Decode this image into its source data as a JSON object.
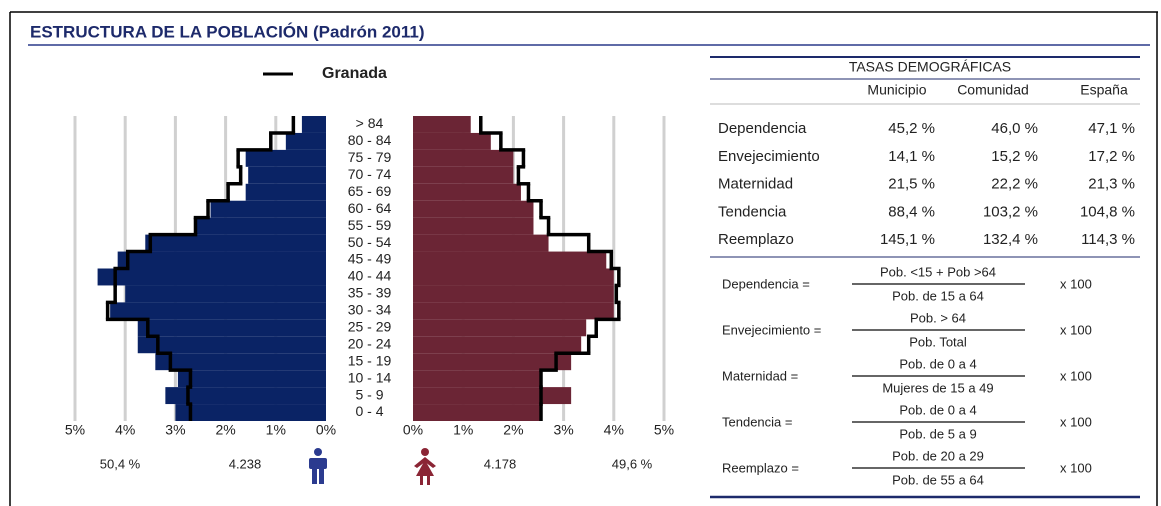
{
  "chart_data": {
    "type": "pyramid",
    "title": "ESTRUCTURA DE LA POBLACIÓN (Padrón 2011)",
    "categories": [
      "0 - 4",
      "5 - 9",
      "10 - 14",
      "15 - 19",
      "20 - 24",
      "25 - 29",
      "30 - 34",
      "35 - 39",
      "40 - 44",
      "45 - 49",
      "50 - 54",
      "55 - 59",
      "60 - 64",
      "65 - 69",
      "70 - 74",
      "75 - 79",
      "80 - 84",
      "> 84"
    ],
    "series": [
      {
        "side": "left",
        "color": "#0a2365",
        "values": [
          3.0,
          3.2,
          2.95,
          3.4,
          3.75,
          3.75,
          4.3,
          4.0,
          4.55,
          4.15,
          3.6,
          2.6,
          2.3,
          1.6,
          1.55,
          1.6,
          0.8,
          0.48
        ]
      },
      {
        "side": "right",
        "color": "#6b2535",
        "values": [
          2.55,
          3.15,
          2.55,
          3.15,
          3.35,
          3.45,
          4.0,
          4.0,
          4.0,
          3.85,
          2.7,
          2.4,
          2.4,
          2.15,
          2.0,
          2.0,
          1.55,
          1.15
        ]
      },
      {
        "name": "Granada",
        "side": "left",
        "color": "#000000",
        "values": [
          2.7,
          2.75,
          2.7,
          3.1,
          3.35,
          3.55,
          4.35,
          4.2,
          4.2,
          3.95,
          3.5,
          2.6,
          2.35,
          1.95,
          1.7,
          1.75,
          1.1,
          0.65
        ]
      },
      {
        "side": "right",
        "color": "#000000",
        "values": [
          2.55,
          2.55,
          2.55,
          2.85,
          3.5,
          3.65,
          4.1,
          4.05,
          4.1,
          3.95,
          3.5,
          2.7,
          2.55,
          2.3,
          2.1,
          2.2,
          1.75,
          1.35
        ]
      }
    ],
    "xlim": [
      0,
      5
    ],
    "xticks": [
      {
        "value": 0,
        "label": "0%"
      },
      {
        "value": 1,
        "label": "1%"
      },
      {
        "value": 2,
        "label": "2%"
      },
      {
        "value": 3,
        "label": "3%"
      },
      {
        "value": 4,
        "label": "4%"
      },
      {
        "value": 5,
        "label": "5%"
      }
    ],
    "grid": true,
    "summary": {
      "male_share": "50,4 %",
      "male_total": "4.238",
      "female_total": "4.178",
      "female_share": "49,6 %"
    }
  },
  "table": {
    "title": "TASAS DEMOGRÁFICAS",
    "columns": [
      "Municipio",
      "Comunidad",
      "España"
    ],
    "rows": [
      [
        "Dependencia",
        "45,2 %",
        "46,0 %",
        "47,1 %"
      ],
      [
        "Envejecimiento",
        "14,1 %",
        "15,2 %",
        "17,2 %"
      ],
      [
        "Maternidad",
        "21,5 %",
        "22,2 %",
        "21,3 %"
      ],
      [
        "Tendencia",
        "88,4 %",
        "103,2 %",
        "104,8 %"
      ],
      [
        "Reemplazo",
        "145,1 %",
        "132,4 %",
        "114,3 %"
      ]
    ]
  },
  "formulas": [
    {
      "label": "Dependencia =",
      "numerator": "Pob. <15 + Pob >64",
      "denominator": "Pob. de 15 a 64",
      "factor": "x 100"
    },
    {
      "label": "Envejecimiento =",
      "numerator": "Pob. > 64",
      "denominator": "Pob. Total",
      "factor": "x 100"
    },
    {
      "label": "Maternidad =",
      "numerator": "Pob. de 0 a 4",
      "denominator": "Mujeres de 15 a 49",
      "factor": "x 100"
    },
    {
      "label": "Tendencia =",
      "numerator": "Pob. de 0 a 4",
      "denominator": "Pob. de 5 a 9",
      "factor": "x 100"
    },
    {
      "label": "Reemplazo =",
      "numerator": "Pob. de 20 a 29",
      "denominator": "Pob. de 55 a 64",
      "factor": "x 100"
    }
  ]
}
